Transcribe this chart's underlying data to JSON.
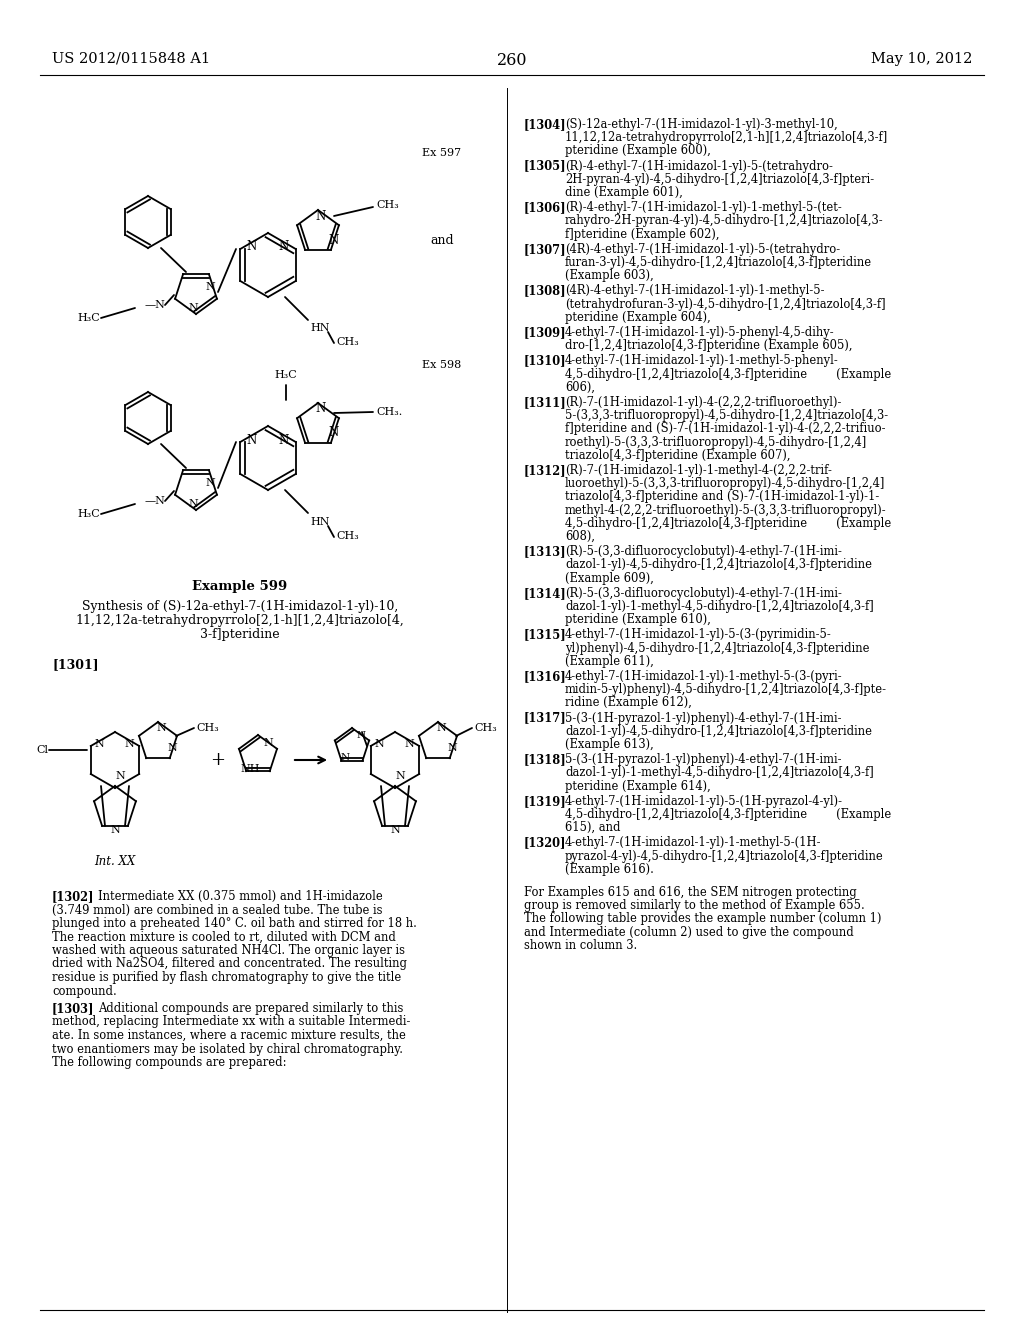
{
  "bg_color": "#ffffff",
  "header_left": "US 2012/0115848 A1",
  "header_right": "May 10, 2012",
  "page_number": "260",
  "ex597_label": "Ex 597",
  "ex598_label": "Ex 598",
  "example599_label": "Example 599",
  "example599_title_line1": "Synthesis of (S)-12a-ethyl-7-(1H-imidazol-1-yl)-10,",
  "example599_title_line2": "11,12,12a-tetrahydropyrrolo[2,1-h][1,2,4]triazolo[4,",
  "example599_title_line3": "3-f]pteridine",
  "para1301": "[1301]",
  "int_xx_label": "Int. XX",
  "right_col_entries": [
    {
      "tag": "[1304]",
      "lines": [
        "(S)-12a-ethyl-7-(1H-imidazol-1-yl)-3-methyl-10,",
        "11,12,12a-tetrahydropyrrolo[2,1-h][1,2,4]triazolo[4,3-f]",
        "pteridine (Example 600),"
      ]
    },
    {
      "tag": "[1305]",
      "lines": [
        "(R)-4-ethyl-7-(1H-imidazol-1-yl)-5-(tetrahydro-",
        "2H-pyran-4-yl)-4,5-dihydro-[1,2,4]triazolo[4,3-f]pteri-",
        "dine (Example 601),"
      ]
    },
    {
      "tag": "[1306]",
      "lines": [
        "(R)-4-ethyl-7-(1H-imidazol-1-yl)-1-methyl-5-(tet-",
        "rahydro-2H-pyran-4-yl)-4,5-dihydro-[1,2,4]triazolo[4,3-",
        "f]pteridine (Example 602),"
      ]
    },
    {
      "tag": "[1307]",
      "lines": [
        "(4R)-4-ethyl-7-(1H-imidazol-1-yl)-5-(tetrahydro-",
        "furan-3-yl)-4,5-dihydro-[1,2,4]triazolo[4,3-f]pteridine",
        "(Example 603),"
      ]
    },
    {
      "tag": "[1308]",
      "lines": [
        "(4R)-4-ethyl-7-(1H-imidazol-1-yl)-1-methyl-5-",
        "(tetrahydrofuran-3-yl)-4,5-dihydro-[1,2,4]triazolo[4,3-f]",
        "pteridine (Example 604),"
      ]
    },
    {
      "tag": "[1309]",
      "lines": [
        "4-ethyl-7-(1H-imidazol-1-yl)-5-phenyl-4,5-dihy-",
        "dro-[1,2,4]triazolo[4,3-f]pteridine (Example 605),"
      ]
    },
    {
      "tag": "[1310]",
      "lines": [
        "4-ethyl-7-(1H-imidazol-1-yl)-1-methyl-5-phenyl-",
        "4,5-dihydro-[1,2,4]triazolo[4,3-f]pteridine        (Example",
        "606),"
      ]
    },
    {
      "tag": "[1311]",
      "lines": [
        "(R)-7-(1H-imidazol-1-yl)-4-(2,2,2-trifluoroethyl)-",
        "5-(3,3,3-trifluoropropyl)-4,5-dihydro-[1,2,4]triazolo[4,3-",
        "f]pteridine and (S)-7-(1H-imidazol-1-yl)-4-(2,2,2-trifiuo-",
        "roethyl)-5-(3,3,3-trifluoropropyl)-4,5-dihydro-[1,2,4]",
        "triazolo[4,3-f]pteridine (Example 607),"
      ]
    },
    {
      "tag": "[1312]",
      "lines": [
        "(R)-7-(1H-imidazol-1-yl)-1-methyl-4-(2,2,2-trif-",
        "luoroethyl)-5-(3,3,3-trifluoropropyl)-4,5-dihydro-[1,2,4]",
        "triazolo[4,3-f]pteridine and (S)-7-(1H-imidazol-1-yl)-1-",
        "methyl-4-(2,2,2-trifluoroethyl)-5-(3,3,3-trifluoropropyl)-",
        "4,5-dihydro-[1,2,4]triazolo[4,3-f]pteridine        (Example",
        "608),"
      ]
    },
    {
      "tag": "[1313]",
      "lines": [
        "(R)-5-(3,3-difluorocyclobutyl)-4-ethyl-7-(1H-imi-",
        "dazol-1-yl)-4,5-dihydro-[1,2,4]triazolo[4,3-f]pteridine",
        "(Example 609),"
      ]
    },
    {
      "tag": "[1314]",
      "lines": [
        "(R)-5-(3,3-difluorocyclobutyl)-4-ethyl-7-(1H-imi-",
        "dazol-1-yl)-1-methyl-4,5-dihydro-[1,2,4]triazolo[4,3-f]",
        "pteridine (Example 610),"
      ]
    },
    {
      "tag": "[1315]",
      "lines": [
        "4-ethyl-7-(1H-imidazol-1-yl)-5-(3-(pyrimidin-5-",
        "yl)phenyl)-4,5-dihydro-[1,2,4]triazolo[4,3-f]pteridine",
        "(Example 611),"
      ]
    },
    {
      "tag": "[1316]",
      "lines": [
        "4-ethyl-7-(1H-imidazol-1-yl)-1-methyl-5-(3-(pyri-",
        "midin-5-yl)phenyl)-4,5-dihydro-[1,2,4]triazolo[4,3-f]pte-",
        "ridine (Example 612),"
      ]
    },
    {
      "tag": "[1317]",
      "lines": [
        "5-(3-(1H-pyrazol-1-yl)phenyl)-4-ethyl-7-(1H-imi-",
        "dazol-1-yl)-4,5-dihydro-[1,2,4]triazolo[4,3-f]pteridine",
        "(Example 613),"
      ]
    },
    {
      "tag": "[1318]",
      "lines": [
        "5-(3-(1H-pyrazol-1-yl)phenyl)-4-ethyl-7-(1H-imi-",
        "dazol-1-yl)-1-methyl-4,5-dihydro-[1,2,4]triazolo[4,3-f]",
        "pteridine (Example 614),"
      ]
    },
    {
      "tag": "[1319]",
      "lines": [
        "4-ethyl-7-(1H-imidazol-1-yl)-5-(1H-pyrazol-4-yl)-",
        "4,5-dihydro-[1,2,4]triazolo[4,3-f]pteridine        (Example",
        "615), and"
      ]
    },
    {
      "tag": "[1320]",
      "lines": [
        "4-ethyl-7-(1H-imidazol-1-yl)-1-methyl-5-(1H-",
        "pyrazol-4-yl)-4,5-dihydro-[1,2,4]triazolo[4,3-f]pteridine",
        "(Example 616)."
      ]
    }
  ],
  "para1302_lines": [
    "[1302]   Intermediate XX (0.375 mmol) and 1H-imidazole",
    "(3.749 mmol) are combined in a sealed tube. The tube is",
    "plunged into a preheated 140° C. oil bath and stirred for 18 h.",
    "The reaction mixture is cooled to rt, diluted with DCM and",
    "washed with aqueous saturated NH4Cl. The organic layer is",
    "dried with Na2SO4, filtered and concentrated. The resulting",
    "residue is purified by flash chromatography to give the title",
    "compound."
  ],
  "para1303_lines": [
    "[1303]   Additional compounds are prepared similarly to this",
    "method, replacing Intermediate xx with a suitable Intermedi-",
    "ate. In some instances, where a racemic mixture results, the",
    "two enantiomers may be isolated by chiral chromatography.",
    "The following compounds are prepared:"
  ],
  "footer_lines": [
    "For Examples 615 and 616, the SEM nitrogen protecting",
    "group is removed similarly to the method of Example 655.",
    "The following table provides the example number (column 1)",
    "and Intermediate (column 2) used to give the compound",
    "shown in column 3."
  ]
}
